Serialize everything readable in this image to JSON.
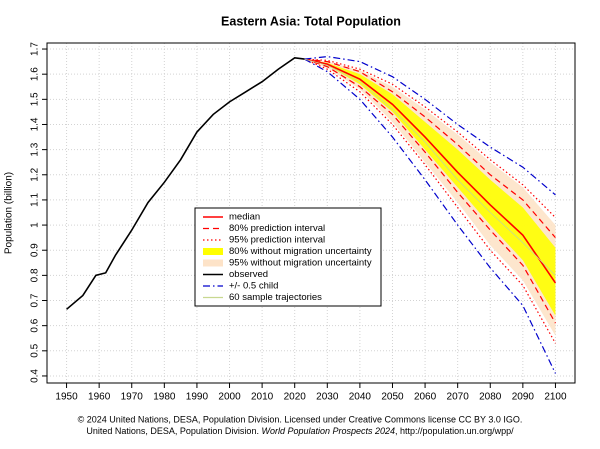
{
  "chart_data": {
    "type": "line",
    "title": "Eastern Asia: Total Population",
    "y_label": "Population (billion)",
    "source_line1": "© 2024 United Nations, DESA, Population Division. Licensed under Creative Commons license CC BY 3.0 IGO.",
    "source_line2": [
      "United Nations, DESA, Population Division. ",
      "World Population Prospects 2024",
      ", http://population.un.org/wpp/"
    ],
    "xlim": [
      1944,
      2106
    ],
    "ylim": [
      0.372,
      1.724
    ],
    "xticks": [
      1950,
      1960,
      1970,
      1980,
      1990,
      2000,
      2010,
      2020,
      2030,
      2040,
      2050,
      2060,
      2070,
      2080,
      2090,
      2100
    ],
    "yticks": [
      0.4,
      0.5,
      0.6,
      0.7,
      0.8,
      0.9,
      1,
      1.1,
      1.2,
      1.3,
      1.4,
      1.5,
      1.6,
      1.7
    ],
    "grid": true,
    "series": [
      {
        "name": "median",
        "kind": "line",
        "color": "#ff0000",
        "dash": "solid",
        "width": 1.6,
        "x": [
          2023,
          2030,
          2040,
          2050,
          2060,
          2070,
          2080,
          2090,
          2100
        ],
        "values": [
          1.66,
          1.64,
          1.58,
          1.48,
          1.35,
          1.21,
          1.08,
          0.96,
          0.77
        ]
      },
      {
        "name": "80% prediction interval",
        "kind": "pair",
        "color": "#ff0000",
        "dash": "dashed",
        "width": 1.2,
        "x": [
          2023,
          2030,
          2040,
          2050,
          2060,
          2070,
          2080,
          2090,
          2100
        ],
        "lower": [
          1.66,
          1.63,
          1.55,
          1.44,
          1.29,
          1.13,
          0.98,
          0.84,
          0.61
        ],
        "upper": [
          1.66,
          1.65,
          1.61,
          1.53,
          1.43,
          1.32,
          1.2,
          1.1,
          0.95
        ]
      },
      {
        "name": "95% prediction interval",
        "kind": "pair",
        "color": "#ff0000",
        "dash": "dotted",
        "width": 1.2,
        "x": [
          2023,
          2030,
          2040,
          2050,
          2060,
          2070,
          2080,
          2090,
          2100
        ],
        "lower": [
          1.66,
          1.62,
          1.53,
          1.4,
          1.24,
          1.07,
          0.9,
          0.76,
          0.53
        ],
        "upper": [
          1.66,
          1.655,
          1.62,
          1.56,
          1.47,
          1.37,
          1.26,
          1.16,
          1.03
        ]
      },
      {
        "name": "80% without migration uncertainty",
        "kind": "band",
        "color": "#ffff00",
        "x": [
          2023,
          2030,
          2040,
          2050,
          2060,
          2070,
          2080,
          2090,
          2100
        ],
        "lower": [
          1.66,
          1.635,
          1.56,
          1.45,
          1.3,
          1.15,
          1.0,
          0.86,
          0.64
        ],
        "upper": [
          1.66,
          1.645,
          1.6,
          1.52,
          1.41,
          1.3,
          1.18,
          1.07,
          0.91
        ]
      },
      {
        "name": "95% without migration uncertainty",
        "kind": "band",
        "color": "#fde3c8",
        "x": [
          2023,
          2030,
          2040,
          2050,
          2060,
          2070,
          2080,
          2090,
          2100
        ],
        "lower": [
          1.66,
          1.625,
          1.54,
          1.41,
          1.25,
          1.09,
          0.92,
          0.78,
          0.56
        ],
        "upper": [
          1.66,
          1.65,
          1.615,
          1.55,
          1.46,
          1.36,
          1.25,
          1.15,
          1.0
        ]
      },
      {
        "name": "observed",
        "kind": "line",
        "color": "#000000",
        "dash": "solid",
        "width": 1.6,
        "x": [
          1950,
          1955,
          1959,
          1962,
          1965,
          1970,
          1975,
          1980,
          1985,
          1990,
          1995,
          2000,
          2005,
          2010,
          2015,
          2020,
          2023
        ],
        "values": [
          0.665,
          0.72,
          0.8,
          0.81,
          0.88,
          0.98,
          1.09,
          1.17,
          1.26,
          1.37,
          1.44,
          1.49,
          1.53,
          1.57,
          1.62,
          1.665,
          1.66
        ]
      },
      {
        "name": "+/- 0.5 child",
        "kind": "pair",
        "color": "#0000cc",
        "dash": "dashdot",
        "width": 1.2,
        "x": [
          2023,
          2030,
          2040,
          2050,
          2060,
          2070,
          2080,
          2090,
          2100
        ],
        "lower": [
          1.66,
          1.61,
          1.5,
          1.35,
          1.18,
          1.0,
          0.83,
          0.68,
          0.41
        ],
        "upper": [
          1.66,
          1.67,
          1.65,
          1.59,
          1.5,
          1.4,
          1.31,
          1.23,
          1.12
        ]
      },
      {
        "name": "60 sample trajectories",
        "kind": "line",
        "color": "#c8d890",
        "dash": "solid",
        "width": 0.8,
        "x": [
          2023,
          2030,
          2040,
          2050,
          2060,
          2070,
          2080,
          2090,
          2100
        ],
        "values": [
          1.66,
          1.635,
          1.57,
          1.46,
          1.33,
          1.18,
          1.05,
          0.93,
          0.8
        ]
      }
    ],
    "legend_position": "center"
  }
}
